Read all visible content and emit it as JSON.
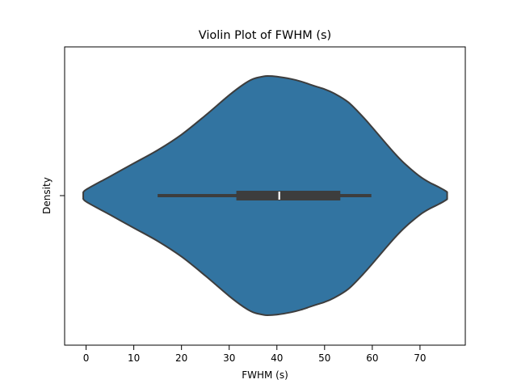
{
  "chart_data": {
    "type": "violin",
    "title": "Violin Plot of FWHM (s)",
    "xlabel": "FWHM (s)",
    "ylabel": "Density",
    "xlim": [
      -4.5,
      79.5
    ],
    "xticks": [
      0,
      10,
      20,
      30,
      40,
      50,
      60,
      70
    ],
    "xtick_labels": [
      "0",
      "10",
      "20",
      "30",
      "40",
      "50",
      "60",
      "70"
    ],
    "grid": false,
    "orientation": "horizontal",
    "series": [
      {
        "fill_color": "#3274a1",
        "edge_color": "#3d3d3d",
        "kde_profile": {
          "x": [
            -0.6,
            0,
            5,
            10,
            15,
            20,
            25,
            30,
            33,
            35,
            37,
            38,
            40,
            43,
            45,
            48,
            50,
            52,
            55,
            58,
            60,
            63,
            65,
            67,
            70,
            72,
            73,
            74,
            75,
            75.7
          ],
          "half_width": [
            0.013,
            0.05,
            0.16,
            0.27,
            0.38,
            0.51,
            0.67,
            0.84,
            0.93,
            0.975,
            0.995,
            1.0,
            0.995,
            0.975,
            0.955,
            0.915,
            0.89,
            0.855,
            0.78,
            0.66,
            0.57,
            0.43,
            0.34,
            0.26,
            0.16,
            0.11,
            0.09,
            0.07,
            0.048,
            0.03
          ]
        },
        "box": {
          "whisker_low": 15,
          "q1": 31.5,
          "median": 40.5,
          "q3": 53.3,
          "whisker_high": 59.8
        }
      }
    ]
  }
}
